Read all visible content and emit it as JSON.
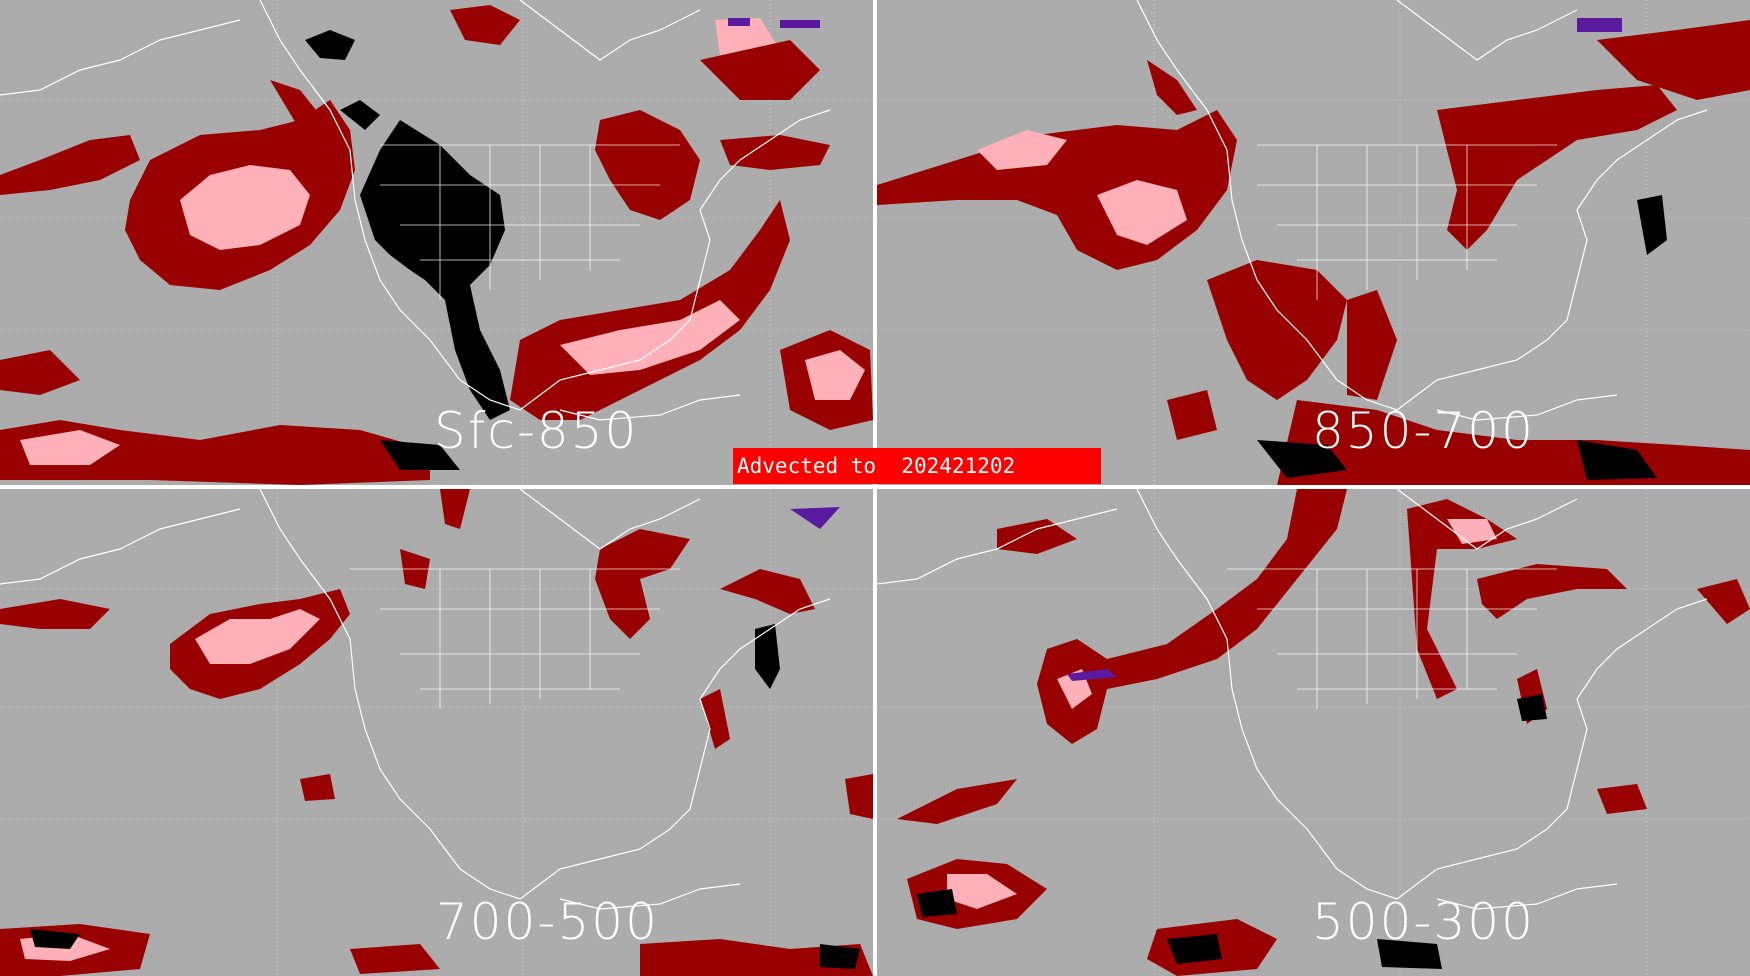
{
  "banner": {
    "prefix": "Advected to",
    "valid_time": "202421202"
  },
  "panels": [
    {
      "id": "tl",
      "layer_label": "Sfc-850"
    },
    {
      "id": "tr",
      "layer_label": "850-700"
    },
    {
      "id": "bl",
      "layer_label": "700-500"
    },
    {
      "id": "br",
      "layer_label": "500-300"
    }
  ],
  "colors": {
    "background": "#acacac",
    "coastline": "#ffffff",
    "dark_red": "#990000",
    "pink": "#ffb0b8",
    "black": "#000000",
    "purple": "#5a1aa0",
    "banner": "#ff0000"
  }
}
